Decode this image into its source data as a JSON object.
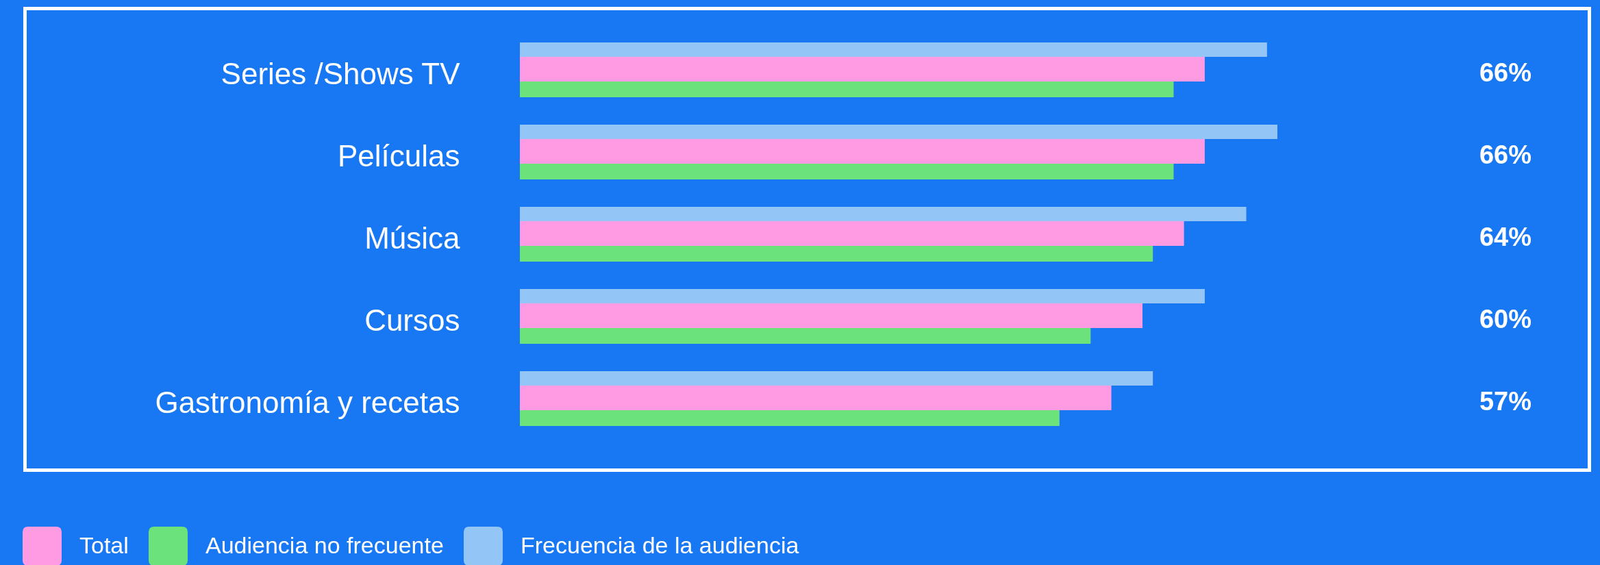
{
  "chart_data": {
    "type": "bar",
    "orientation": "horizontal",
    "categories": [
      "Series /Shows TV",
      "Películas",
      "Música",
      "Cursos",
      "Gastronomía y recetas"
    ],
    "series": [
      {
        "name": "Total",
        "color": "#ff9be2",
        "values": [
          66,
          66,
          64,
          60,
          57
        ],
        "value_labels": [
          "66%",
          "66%",
          "64%",
          "60%",
          "57%"
        ]
      },
      {
        "name": "Audiencia no frecuente",
        "color": "#6be27a",
        "values": [
          63,
          63,
          61,
          55,
          52
        ]
      },
      {
        "name": "Frecuencia de la audiencia",
        "color": "#93c6f6",
        "values": [
          72,
          73,
          70,
          66,
          61
        ]
      }
    ],
    "legend": "bottom left",
    "tick_labels": "y"
  }
}
